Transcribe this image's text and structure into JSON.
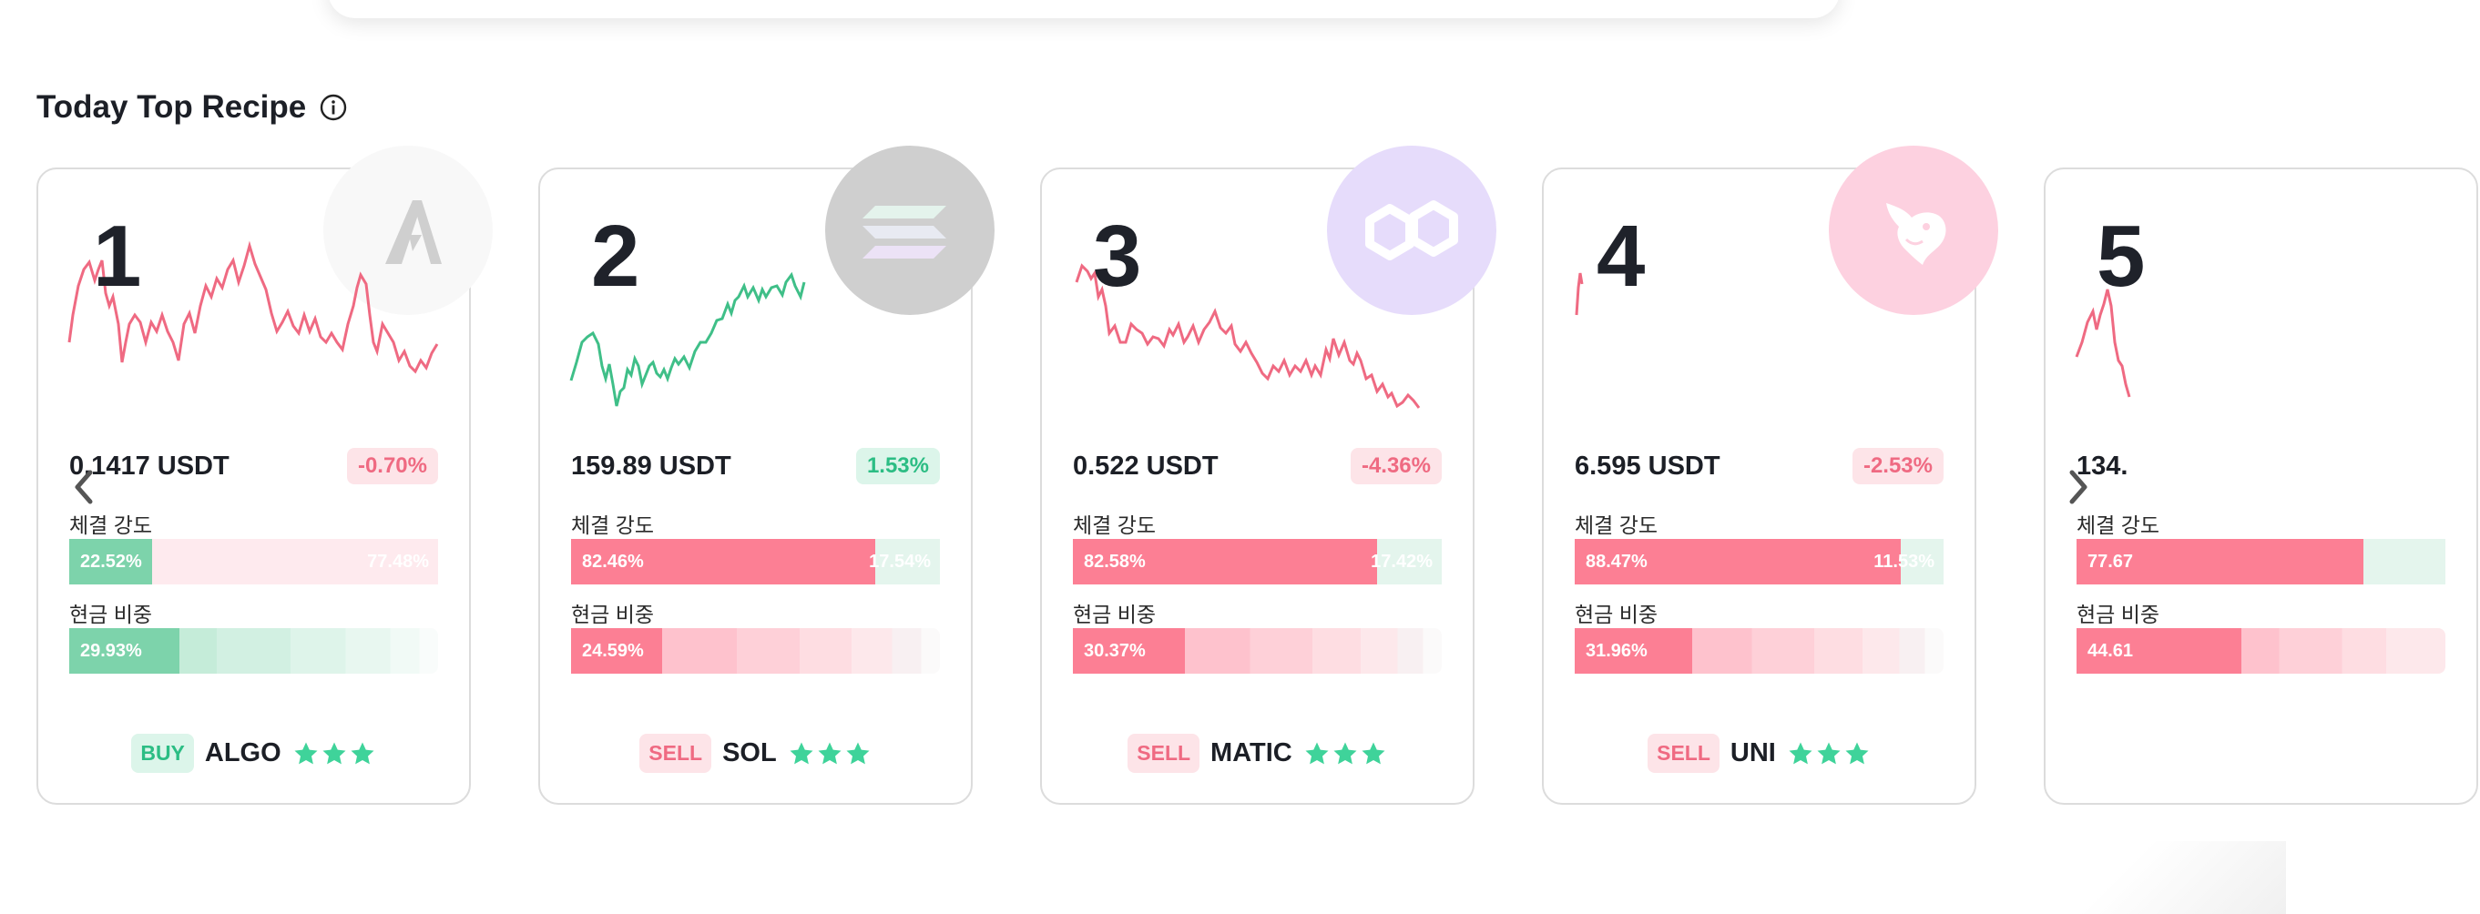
{
  "section": {
    "title": "Today Top Recipe"
  },
  "labels": {
    "strength": "체결 강도",
    "cash": "현금 비중"
  },
  "colors": {
    "red": "#ef6a82",
    "green": "#2cbd84",
    "bar_red": "#fc7f94",
    "bar_green": "#7dd3ab"
  },
  "cards": [
    {
      "rank": "1",
      "symbol": "ALGO",
      "side": "BUY",
      "direction": "down",
      "price": "0.1417 USDT",
      "change": "-0.70%",
      "stars": 3,
      "coin_icon": "algorand-logo-icon",
      "strength": {
        "primary": "22.52%",
        "secondary": "77.48%",
        "primary_pct": 22.52,
        "primary_color": "green"
      },
      "cash": {
        "value": "29.93%",
        "pct": 29.93,
        "color": "green"
      }
    },
    {
      "rank": "2",
      "symbol": "SOL",
      "side": "SELL",
      "direction": "up",
      "price": "159.89 USDT",
      "change": "1.53%",
      "stars": 3,
      "coin_icon": "solana-logo-icon",
      "strength": {
        "primary": "82.46%",
        "secondary": "17.54%",
        "primary_pct": 82.46,
        "primary_color": "red"
      },
      "cash": {
        "value": "24.59%",
        "pct": 24.59,
        "color": "red"
      }
    },
    {
      "rank": "3",
      "symbol": "MATIC",
      "side": "SELL",
      "direction": "down",
      "price": "0.522 USDT",
      "change": "-4.36%",
      "stars": 3,
      "coin_icon": "polygon-logo-icon",
      "strength": {
        "primary": "82.58%",
        "secondary": "17.42%",
        "primary_pct": 82.58,
        "primary_color": "red"
      },
      "cash": {
        "value": "30.37%",
        "pct": 30.37,
        "color": "red"
      }
    },
    {
      "rank": "4",
      "symbol": "UNI",
      "side": "SELL",
      "direction": "down",
      "price": "6.595 USDT",
      "change": "-2.53%",
      "stars": 3,
      "coin_icon": "uniswap-logo-icon",
      "strength": {
        "primary": "88.47%",
        "secondary": "11.53%",
        "primary_pct": 88.47,
        "primary_color": "red"
      },
      "cash": {
        "value": "31.96%",
        "pct": 31.96,
        "color": "red"
      }
    },
    {
      "rank": "5",
      "symbol": "",
      "side": "",
      "direction": "down",
      "price": "134.",
      "change": "",
      "stars": 0,
      "coin_icon": "",
      "strength": {
        "primary": "77.67",
        "secondary": "",
        "primary_pct": 77.67,
        "primary_color": "red"
      },
      "cash": {
        "value": "44.61",
        "pct": 44.61,
        "color": "red"
      }
    }
  ]
}
